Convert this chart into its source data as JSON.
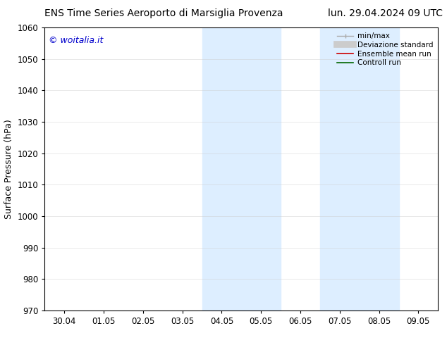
{
  "title_left": "ENS Time Series Aeroporto di Marsiglia Provenza",
  "title_right": "lun. 29.04.2024 09 UTC",
  "ylabel": "Surface Pressure (hPa)",
  "ylim": [
    970,
    1060
  ],
  "yticks": [
    970,
    980,
    990,
    1000,
    1010,
    1020,
    1030,
    1040,
    1050,
    1060
  ],
  "xlabels": [
    "30.04",
    "01.05",
    "02.05",
    "03.05",
    "04.05",
    "05.05",
    "06.05",
    "07.05",
    "08.05",
    "09.05"
  ],
  "x_positions": [
    0,
    1,
    2,
    3,
    4,
    5,
    6,
    7,
    8,
    9
  ],
  "xlim": [
    -0.5,
    9.5
  ],
  "shaded_regions": [
    {
      "x_start": 3.5,
      "x_end": 4.5,
      "color": "#ddeeff"
    },
    {
      "x_start": 4.5,
      "x_end": 5.5,
      "color": "#ddeeff"
    },
    {
      "x_start": 6.5,
      "x_end": 7.5,
      "color": "#ddeeff"
    },
    {
      "x_start": 7.5,
      "x_end": 8.5,
      "color": "#ddeeff"
    }
  ],
  "watermark_text": "© woitalia.it",
  "watermark_color": "#0000cc",
  "background_color": "#ffffff",
  "grid_color": "#cccccc",
  "grid_alpha": 0.5,
  "spine_color": "#000000",
  "title_fontsize": 10,
  "label_fontsize": 9,
  "tick_fontsize": 8.5,
  "legend_fontsize": 7.5,
  "watermark_fontsize": 9
}
